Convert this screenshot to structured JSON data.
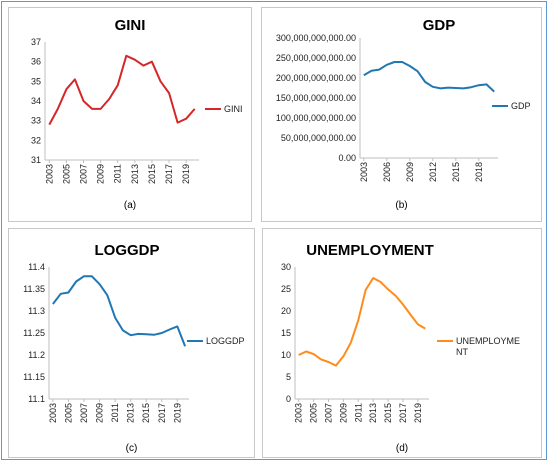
{
  "chart_data": [
    {
      "type": "line",
      "title": "GINI",
      "caption": "(a)",
      "legend_position": "right",
      "color": "#d62728",
      "x": [
        2003,
        2004,
        2005,
        2006,
        2007,
        2008,
        2009,
        2010,
        2011,
        2012,
        2013,
        2014,
        2015,
        2016,
        2017,
        2018,
        2019,
        2020
      ],
      "xticks": [
        "2003",
        "2005",
        "2007",
        "2009",
        "2011",
        "2013",
        "2015",
        "2017",
        "2019"
      ],
      "ylim": [
        31,
        37
      ],
      "yticks": [
        "31",
        "32",
        "33",
        "34",
        "35",
        "36",
        "37"
      ],
      "grid": false,
      "series": [
        {
          "name": "GINI",
          "values": [
            32.8,
            33.6,
            34.6,
            35.1,
            34.0,
            33.6,
            33.6,
            34.1,
            34.8,
            36.3,
            36.1,
            35.8,
            36.0,
            35.0,
            34.4,
            32.9,
            33.1,
            33.6
          ]
        }
      ]
    },
    {
      "type": "line",
      "title": "GDP",
      "caption": "(b)",
      "legend_position": "right",
      "color": "#1f77b4",
      "x": [
        2003,
        2004,
        2005,
        2006,
        2007,
        2008,
        2009,
        2010,
        2011,
        2012,
        2013,
        2014,
        2015,
        2016,
        2017,
        2018,
        2019,
        2020
      ],
      "xticks": [
        "2003",
        "2006",
        "2009",
        "2012",
        "2015",
        "2018"
      ],
      "ylim": [
        0,
        300000000000
      ],
      "yticks": [
        "0.00",
        "50,000,000,000.00",
        "100,000,000,000.00",
        "150,000,000,000.00",
        "200,000,000,000.00",
        "250,000,000,000.00",
        "300,000,000,000.00"
      ],
      "grid": false,
      "series": [
        {
          "name": "GDP",
          "values": [
            207000000000,
            218000000000,
            221000000000,
            233000000000,
            240000000000,
            240000000000,
            230000000000,
            217000000000,
            190000000000,
            178000000000,
            174000000000,
            176000000000,
            175000000000,
            174000000000,
            177000000000,
            182000000000,
            184000000000,
            166000000000
          ]
        }
      ]
    },
    {
      "type": "line",
      "title": "LOGGDP",
      "caption": "(c)",
      "legend_position": "right",
      "color": "#1f77b4",
      "x": [
        2003,
        2004,
        2005,
        2006,
        2007,
        2008,
        2009,
        2010,
        2011,
        2012,
        2013,
        2014,
        2015,
        2016,
        2017,
        2018,
        2019,
        2020
      ],
      "xticks": [
        "2003",
        "2005",
        "2007",
        "2009",
        "2011",
        "2013",
        "2015",
        "2017",
        "2019"
      ],
      "ylim": [
        11.1,
        11.4
      ],
      "yticks": [
        "11.1",
        "11.15",
        "11.2",
        "11.25",
        "11.3",
        "11.35",
        "11.4"
      ],
      "grid": false,
      "series": [
        {
          "name": "LOGGDP",
          "values": [
            11.316,
            11.339,
            11.342,
            11.367,
            11.379,
            11.379,
            11.361,
            11.336,
            11.285,
            11.256,
            11.245,
            11.248,
            11.247,
            11.246,
            11.25,
            11.258,
            11.265,
            11.22
          ]
        }
      ]
    },
    {
      "type": "line",
      "title": "UNEMPLOYMENT",
      "caption": "(d)",
      "legend_position": "right",
      "color": "#ff8c1a",
      "x": [
        2003,
        2004,
        2005,
        2006,
        2007,
        2008,
        2009,
        2010,
        2011,
        2012,
        2013,
        2014,
        2015,
        2016,
        2017,
        2018,
        2019,
        2020
      ],
      "xticks": [
        "2003",
        "2005",
        "2007",
        "2009",
        "2011",
        "2013",
        "2015",
        "2017",
        "2019"
      ],
      "ylim": [
        0,
        30
      ],
      "yticks": [
        "0",
        "5",
        "10",
        "15",
        "20",
        "25",
        "30"
      ],
      "grid": false,
      "series": [
        {
          "name": "UNEMPLOYMENT",
          "values": [
            10.0,
            10.8,
            10.2,
            9.0,
            8.4,
            7.6,
            9.7,
            12.8,
            17.9,
            24.8,
            27.5,
            26.6,
            24.9,
            23.5,
            21.5,
            19.2,
            17.0,
            16.0
          ]
        }
      ]
    }
  ]
}
